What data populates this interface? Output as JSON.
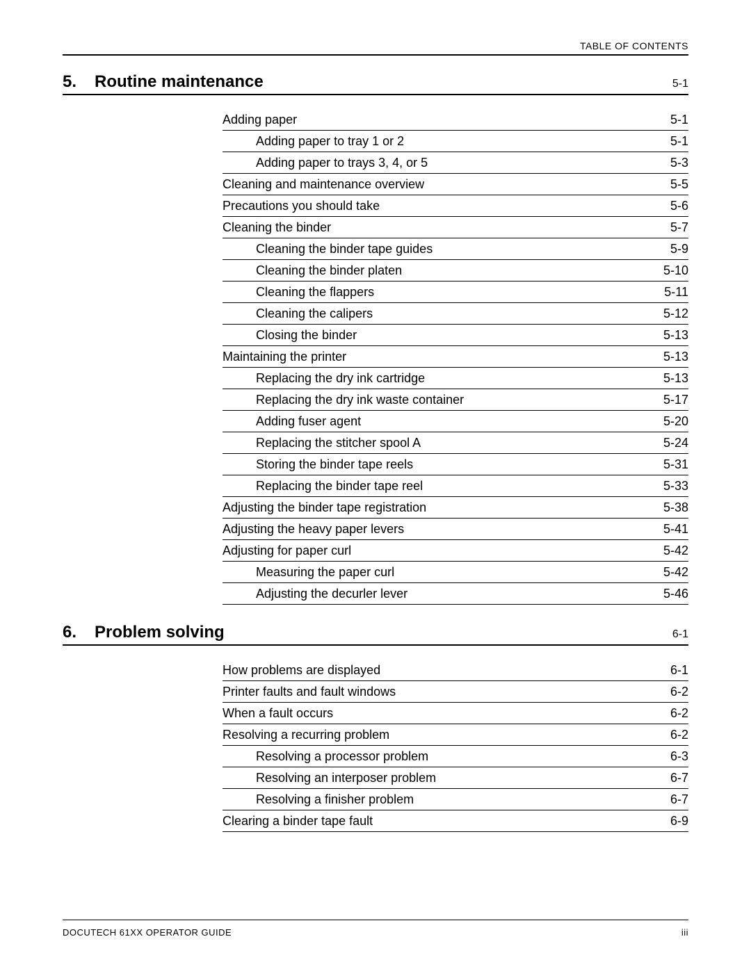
{
  "header_label": "TABLE OF CONTENTS",
  "footer_left": "DOCUTECH 61XX OPERATOR GUIDE",
  "footer_right": "iii",
  "sections": [
    {
      "number": "5.",
      "title": "Routine maintenance",
      "page": "5-1",
      "entries": [
        {
          "level": 1,
          "title": "Adding paper",
          "page": "5-1"
        },
        {
          "level": 2,
          "title": "Adding paper to tray 1 or 2",
          "page": "5-1"
        },
        {
          "level": 2,
          "title": "Adding paper to trays 3, 4, or 5",
          "page": "5-3"
        },
        {
          "level": 1,
          "title": "Cleaning and maintenance overview",
          "page": "5-5"
        },
        {
          "level": 1,
          "title": "Precautions you should take",
          "page": "5-6"
        },
        {
          "level": 1,
          "title": "Cleaning the binder",
          "page": "5-7"
        },
        {
          "level": 2,
          "title": "Cleaning the binder tape guides",
          "page": "5-9"
        },
        {
          "level": 2,
          "title": "Cleaning the binder platen",
          "page": "5-10"
        },
        {
          "level": 2,
          "title": "Cleaning the flappers",
          "page": "5-11"
        },
        {
          "level": 2,
          "title": "Cleaning the calipers",
          "page": "5-12"
        },
        {
          "level": 2,
          "title": "Closing the binder",
          "page": "5-13"
        },
        {
          "level": 1,
          "title": "Maintaining the printer",
          "page": "5-13"
        },
        {
          "level": 2,
          "title": "Replacing the dry ink cartridge",
          "page": "5-13"
        },
        {
          "level": 2,
          "title": "Replacing the dry ink waste container",
          "page": "5-17"
        },
        {
          "level": 2,
          "title": "Adding fuser agent",
          "page": "5-20"
        },
        {
          "level": 2,
          "title": "Replacing the stitcher spool A",
          "page": "5-24"
        },
        {
          "level": 2,
          "title": "Storing the binder tape reels",
          "page": "5-31"
        },
        {
          "level": 2,
          "title": "Replacing the binder tape reel",
          "page": "5-33"
        },
        {
          "level": 1,
          "title": "Adjusting the binder tape registration",
          "page": "5-38"
        },
        {
          "level": 1,
          "title": "Adjusting the heavy paper levers",
          "page": "5-41"
        },
        {
          "level": 1,
          "title": "Adjusting for paper curl",
          "page": "5-42"
        },
        {
          "level": 2,
          "title": "Measuring the paper curl",
          "page": "5-42"
        },
        {
          "level": 2,
          "title": "Adjusting the decurler lever",
          "page": "5-46"
        }
      ]
    },
    {
      "number": "6.",
      "title": "Problem solving",
      "page": "6-1",
      "entries": [
        {
          "level": 1,
          "title": "How problems are displayed",
          "page": "6-1"
        },
        {
          "level": 1,
          "title": "Printer faults and fault windows",
          "page": "6-2"
        },
        {
          "level": 1,
          "title": "When a fault occurs",
          "page": "6-2"
        },
        {
          "level": 1,
          "title": "Resolving a recurring problem",
          "page": "6-2"
        },
        {
          "level": 2,
          "title": "Resolving a processor problem",
          "page": "6-3"
        },
        {
          "level": 2,
          "title": "Resolving an interposer problem",
          "page": "6-7"
        },
        {
          "level": 2,
          "title": "Resolving a finisher problem",
          "page": "6-7"
        },
        {
          "level": 1,
          "title": "Clearing a binder tape fault",
          "page": "6-9"
        }
      ]
    }
  ],
  "colors": {
    "text": "#000000",
    "background": "#ffffff",
    "rule": "#000000"
  },
  "typography": {
    "body_fontsize_pt": 13,
    "chapter_fontsize_pt": 18,
    "header_fontsize_pt": 10,
    "footer_fontsize_pt": 10
  }
}
